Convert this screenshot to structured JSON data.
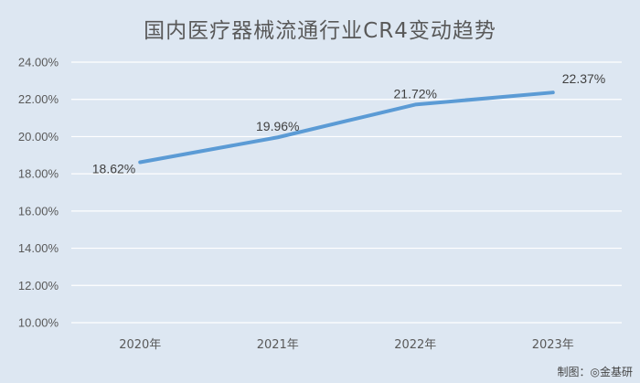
{
  "chart_data": {
    "type": "line",
    "title": "国内医疗器械流通行业CR4变动趋势",
    "categories": [
      "2020年",
      "2021年",
      "2022年",
      "2023年"
    ],
    "series": [
      {
        "values": [
          18.62,
          19.96,
          21.72,
          22.37
        ]
      }
    ],
    "data_labels": [
      "18.62%",
      "19.96%",
      "21.72%",
      "22.37%"
    ],
    "yticks": [
      "10.00%",
      "12.00%",
      "14.00%",
      "16.00%",
      "18.00%",
      "20.00%",
      "22.00%",
      "24.00%"
    ],
    "ylim": [
      10,
      24
    ],
    "ystep": 2,
    "grid": true,
    "legend": "none",
    "colors": {
      "line": "#5b9bd5",
      "grid": "#ffffff",
      "background": "#dde7f2"
    }
  },
  "footer": {
    "credit": "制图：◎金基研"
  }
}
